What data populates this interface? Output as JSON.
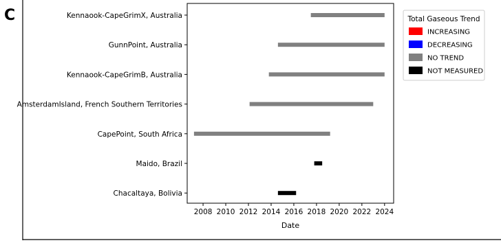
{
  "panel_label": "C",
  "chart_data": {
    "type": "gantt",
    "xlabel": "Date",
    "ylabel": "",
    "xlim": [
      2006.6,
      2024.8
    ],
    "xticks": [
      2008,
      2010,
      2012,
      2014,
      2016,
      2018,
      2020,
      2022,
      2024
    ],
    "categories": [
      "Kennaook-CapeGrimX, Australia",
      "GunnPoint, Australia",
      "Kennaook-CapeGrimB, Australia",
      "AmsterdamIsland, French Southern Territories",
      "CapePoint, South Africa",
      "Maido, Brazil",
      "Chacaltaya, Bolivia"
    ],
    "bars": [
      {
        "station": "Kennaook-CapeGrimX, Australia",
        "start": 2017.5,
        "end": 2024.0,
        "status": "NO TREND"
      },
      {
        "station": "GunnPoint, Australia",
        "start": 2014.6,
        "end": 2024.0,
        "status": "NO TREND"
      },
      {
        "station": "Kennaook-CapeGrimB, Australia",
        "start": 2013.8,
        "end": 2024.0,
        "status": "NO TREND"
      },
      {
        "station": "AmsterdamIsland, French Southern Territories",
        "start": 2012.1,
        "end": 2023.0,
        "status": "NO TREND"
      },
      {
        "station": "CapePoint, South Africa",
        "start": 2007.2,
        "end": 2019.2,
        "status": "NO TREND"
      },
      {
        "station": "Maido, Brazil",
        "start": 2017.8,
        "end": 2018.5,
        "status": "NOT MEASURED"
      },
      {
        "station": "Chacaltaya, Bolivia",
        "start": 2014.6,
        "end": 2016.2,
        "status": "NOT MEASURED"
      }
    ],
    "legend": {
      "title": "Total Gaseous Trend",
      "placement": "right",
      "entries": [
        {
          "label": "INCREASING",
          "color": "#ff0000"
        },
        {
          "label": "DECREASING",
          "color": "#0000ff"
        },
        {
          "label": "NO TREND",
          "color": "#808080"
        },
        {
          "label": "NOT MEASURED",
          "color": "#000000"
        }
      ]
    },
    "grid": false
  }
}
